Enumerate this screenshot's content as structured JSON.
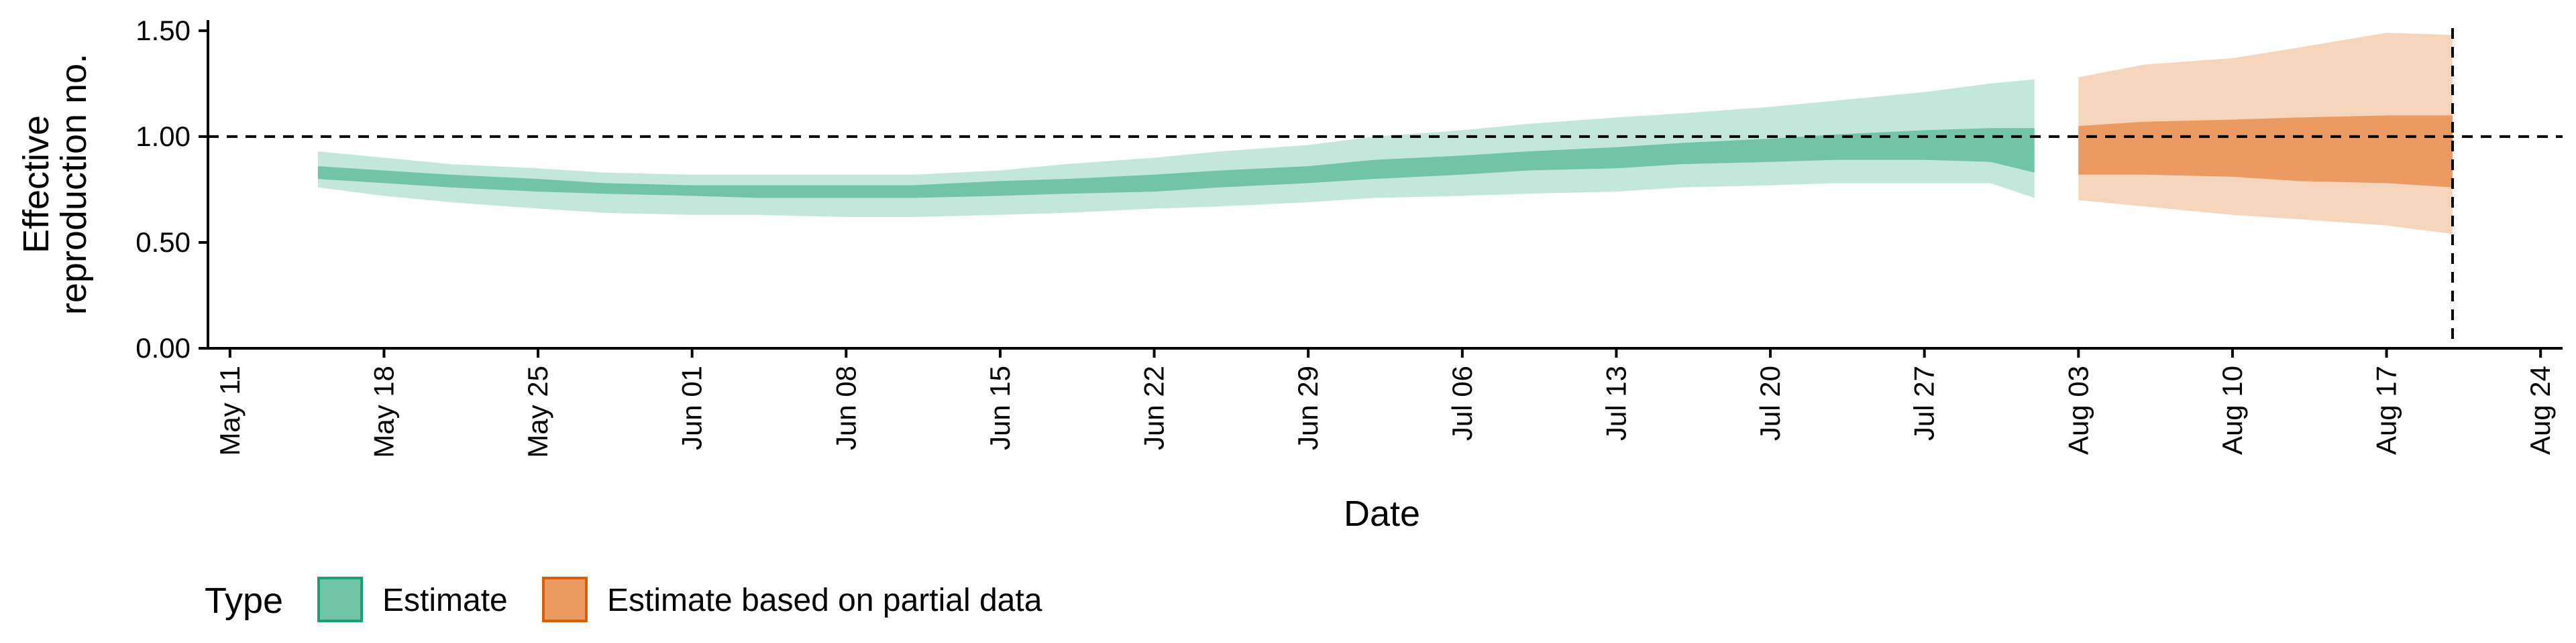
{
  "chart_data": {
    "type": "area",
    "xlabel": "Date",
    "ylabel_lines": [
      "Effective",
      "reproduction no."
    ],
    "x_ticks": [
      "May 11",
      "May 18",
      "May 25",
      "Jun 01",
      "Jun 08",
      "Jun 15",
      "Jun 22",
      "Jun 29",
      "Jul 06",
      "Jul 13",
      "Jul 20",
      "Jul 27",
      "Aug 03",
      "Aug 10",
      "Aug 17",
      "Aug 24"
    ],
    "y_ticks": [
      "0.00",
      "0.50",
      "1.00",
      "1.50"
    ],
    "ylim": [
      0,
      1.55
    ],
    "xlim": [
      "2020-05-10",
      "2020-08-25"
    ],
    "reference_hline": 1.0,
    "reference_vline": "2020-08-20",
    "legend": {
      "position": "bottom-left",
      "title": "Type",
      "items": [
        {
          "label": "Estimate",
          "color": "#1b9e77"
        },
        {
          "label": "Estimate based on partial data",
          "color": "#d95f02"
        }
      ]
    },
    "colors": {
      "estimate_outer": "#c4e7dc",
      "estimate_inner": "#72c4a6",
      "partial_outer": "#f6d5bd",
      "partial_inner": "#eb9a62",
      "estimate_border": "#1b9e77",
      "partial_border": "#d95f02"
    },
    "series": [
      {
        "type_label": "Estimate",
        "dates": [
          "2020-05-15",
          "2020-05-18",
          "2020-05-21",
          "2020-05-25",
          "2020-05-28",
          "2020-06-01",
          "2020-06-04",
          "2020-06-08",
          "2020-06-11",
          "2020-06-15",
          "2020-06-18",
          "2020-06-22",
          "2020-06-25",
          "2020-06-29",
          "2020-07-02",
          "2020-07-06",
          "2020-07-09",
          "2020-07-13",
          "2020-07-16",
          "2020-07-20",
          "2020-07-23",
          "2020-07-27",
          "2020-07-30",
          "2020-08-01"
        ],
        "lower_90": [
          0.76,
          0.72,
          0.69,
          0.66,
          0.64,
          0.63,
          0.63,
          0.62,
          0.62,
          0.63,
          0.64,
          0.66,
          0.67,
          0.69,
          0.71,
          0.72,
          0.73,
          0.74,
          0.76,
          0.77,
          0.78,
          0.78,
          0.78,
          0.71
        ],
        "lower_50": [
          0.8,
          0.78,
          0.76,
          0.74,
          0.73,
          0.72,
          0.71,
          0.71,
          0.71,
          0.72,
          0.73,
          0.74,
          0.76,
          0.78,
          0.8,
          0.82,
          0.84,
          0.85,
          0.87,
          0.88,
          0.89,
          0.89,
          0.88,
          0.83
        ],
        "upper_50": [
          0.86,
          0.84,
          0.82,
          0.8,
          0.78,
          0.77,
          0.77,
          0.77,
          0.77,
          0.79,
          0.8,
          0.82,
          0.84,
          0.86,
          0.89,
          0.91,
          0.93,
          0.95,
          0.97,
          0.99,
          1.01,
          1.03,
          1.04,
          1.04
        ],
        "upper_90": [
          0.93,
          0.9,
          0.87,
          0.85,
          0.83,
          0.82,
          0.82,
          0.82,
          0.82,
          0.84,
          0.87,
          0.9,
          0.93,
          0.96,
          1.0,
          1.03,
          1.06,
          1.09,
          1.11,
          1.14,
          1.17,
          1.21,
          1.25,
          1.27
        ]
      },
      {
        "type_label": "Estimate based on partial data",
        "dates": [
          "2020-08-03",
          "2020-08-06",
          "2020-08-10",
          "2020-08-13",
          "2020-08-17",
          "2020-08-20"
        ],
        "lower_90": [
          0.7,
          0.67,
          0.63,
          0.61,
          0.58,
          0.54
        ],
        "lower_50": [
          0.82,
          0.82,
          0.81,
          0.79,
          0.78,
          0.76
        ],
        "upper_50": [
          1.05,
          1.07,
          1.08,
          1.09,
          1.1,
          1.1
        ],
        "upper_90": [
          1.28,
          1.34,
          1.37,
          1.42,
          1.49,
          1.48
        ]
      }
    ]
  }
}
